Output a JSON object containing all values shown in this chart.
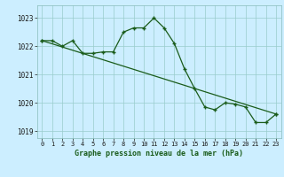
{
  "line1_x": [
    0,
    1,
    2,
    3,
    4,
    5,
    6,
    7,
    8,
    9,
    10,
    11,
    12,
    13,
    14,
    15,
    16,
    17,
    18,
    19,
    20,
    21,
    22,
    23
  ],
  "line1_y": [
    1022.2,
    1022.2,
    1022.0,
    1022.2,
    1021.75,
    1021.75,
    1021.8,
    1021.8,
    1022.5,
    1022.65,
    1022.65,
    1023.0,
    1022.65,
    1022.1,
    1021.2,
    1020.5,
    1019.85,
    1019.75,
    1020.0,
    1019.95,
    1019.85,
    1019.3,
    1019.3,
    1019.6
  ],
  "line2_x": [
    0,
    23
  ],
  "line2_y": [
    1022.2,
    1019.6
  ],
  "line_color": "#1a5c1a",
  "bg_color": "#cceeff",
  "grid_color": "#99cccc",
  "xlabel": "Graphe pression niveau de la mer (hPa)",
  "ylim": [
    1018.75,
    1023.45
  ],
  "yticks": [
    1019,
    1020,
    1021,
    1022,
    1023
  ],
  "xticks": [
    0,
    1,
    2,
    3,
    4,
    5,
    6,
    7,
    8,
    9,
    10,
    11,
    12,
    13,
    14,
    15,
    16,
    17,
    18,
    19,
    20,
    21,
    22,
    23
  ],
  "marker": "+"
}
